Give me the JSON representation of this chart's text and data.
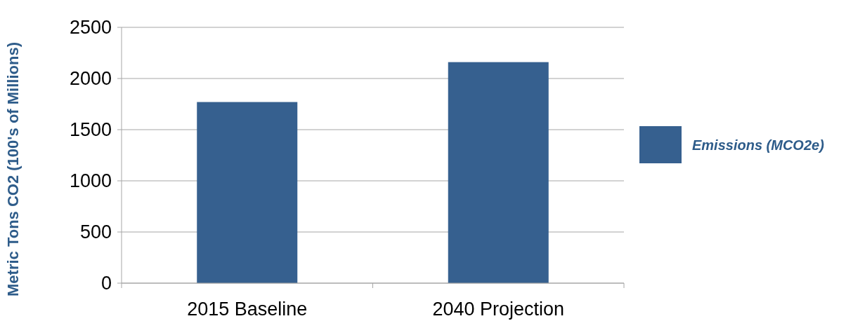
{
  "chart_data": {
    "type": "bar",
    "ylabel": "Metric Tons CO2 (100's of Millions)",
    "categories": [
      "2015 Baseline",
      "2040 Projection"
    ],
    "series": [
      {
        "name": "Emissions (MCO2e)",
        "color": "#36608f",
        "values": [
          1770,
          2160
        ]
      }
    ],
    "ylim": [
      0,
      2500
    ],
    "yticks": [
      0,
      500,
      1000,
      1500,
      2000,
      2500
    ],
    "grid": "y",
    "legend": "right"
  }
}
